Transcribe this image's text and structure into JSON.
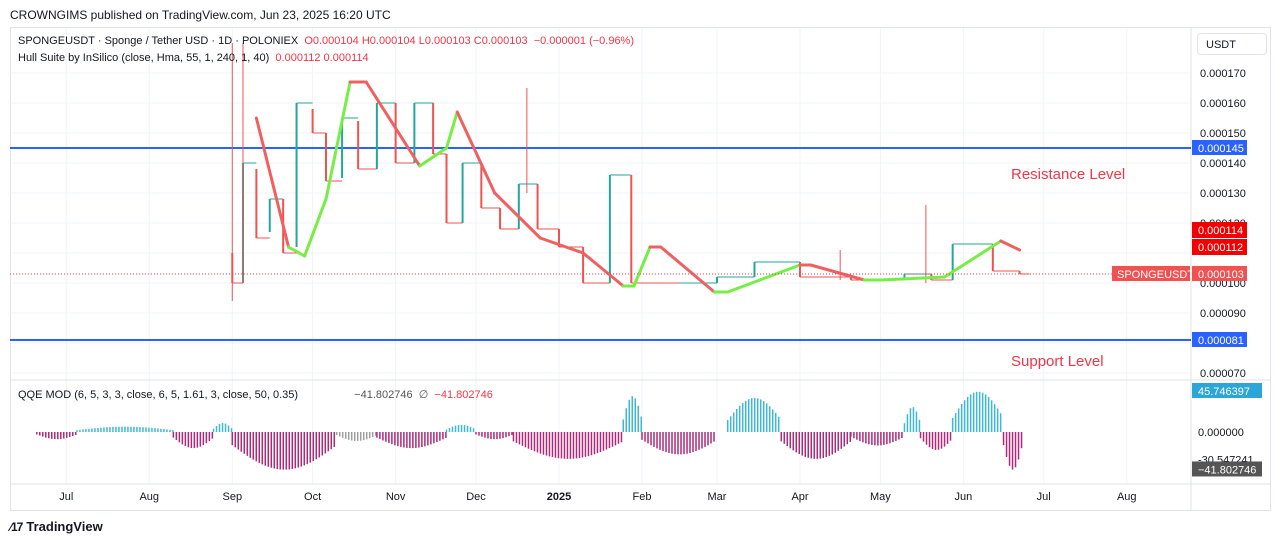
{
  "publisher": "CROWNGIMS published on TradingView.com, Jun 23, 2025 16:20 UTC",
  "legend": {
    "symbol_line": "SPONGEUSDT · Sponge / Tether USD · 1D · POLONIEX",
    "ohlc": "O0.000104 H0.000104 L0.000103 C0.000103",
    "change": "−0.000001 (−0.96%)",
    "hull_label": "Hull Suite by InSilico (close, Hma, 55, 1, 240, 1, 40)",
    "hull_values": "0.000112  0.000114",
    "qqe_label": "QQE MOD (6, 5, 3, 3, close, 6, 5, 1.61, 3, close, 50, 0.35)",
    "qqe_value": "−41.802746",
    "qqe_sep": "∅",
    "qqe_value2": "−41.802746"
  },
  "currency": "USDT",
  "annotations": {
    "resistance": "Resistance Level",
    "support": "Support Level"
  },
  "brand": "TradingView",
  "colors": {
    "up": "#26a69a",
    "down": "#ef5350",
    "hull_up": "#76ee46",
    "hull_down": "#f06060",
    "level": "#2962ff",
    "qqe_up": "#3fb8d4",
    "qqe_down": "#b0287a",
    "qqe_grey": "#9e9e9e"
  },
  "chart_data": {
    "type": "line",
    "title": "SPONGEUSDT · Sponge / Tether USD · 1D · POLONIEX",
    "x_ticks": [
      "Jul",
      "Aug",
      "Sep",
      "Oct",
      "Nov",
      "Dec",
      "2025",
      "Feb",
      "Mar",
      "Apr",
      "May",
      "Jun",
      "Jul",
      "Aug"
    ],
    "y_ticks": [
      "0.000170",
      "0.000160",
      "0.000150",
      "0.000140",
      "0.000130",
      "0.000120",
      "0.000100",
      "0.000090",
      "0.000070"
    ],
    "ylim": [
      6.6e-05,
      0.00018
    ],
    "levels": [
      {
        "name": "Resistance Level",
        "value": 0.000145,
        "label": "0.000145"
      },
      {
        "name": "Support Level",
        "value": 8.1e-05,
        "label": "0.000081"
      }
    ],
    "last_price": {
      "label": "SPONGEUSDT",
      "value": "0.000103",
      "y": 0.000103
    },
    "hull_price_labels": [
      {
        "value": "0.000114",
        "y": 0.000114
      },
      {
        "value": "0.000112",
        "y": 0.000112
      }
    ],
    "price_points": [
      {
        "x": "2024-09-01",
        "o": 0.00011,
        "c": 0.0001
      },
      {
        "x": "2024-09-05",
        "o": 0.0001,
        "c": 0.00014
      },
      {
        "x": "2024-09-10",
        "o": 0.000138,
        "c": 0.000115
      },
      {
        "x": "2024-09-15",
        "o": 0.000117,
        "c": 0.000128
      },
      {
        "x": "2024-09-20",
        "o": 0.000128,
        "c": 0.00011
      },
      {
        "x": "2024-09-25",
        "o": 0.000112,
        "c": 0.00016
      },
      {
        "x": "2024-10-01",
        "o": 0.000158,
        "c": 0.00015
      },
      {
        "x": "2024-10-06",
        "o": 0.00015,
        "c": 0.000134
      },
      {
        "x": "2024-10-12",
        "o": 0.000135,
        "c": 0.000155
      },
      {
        "x": "2024-10-18",
        "o": 0.000154,
        "c": 0.000138
      },
      {
        "x": "2024-10-25",
        "o": 0.000138,
        "c": 0.00016
      },
      {
        "x": "2024-11-01",
        "o": 0.00016,
        "c": 0.00014
      },
      {
        "x": "2024-11-08",
        "o": 0.00014,
        "c": 0.00016
      },
      {
        "x": "2024-11-15",
        "o": 0.00016,
        "c": 0.000143
      },
      {
        "x": "2024-11-20",
        "o": 0.000143,
        "c": 0.00012
      },
      {
        "x": "2024-11-26",
        "o": 0.00012,
        "c": 0.00014
      },
      {
        "x": "2024-12-03",
        "o": 0.00014,
        "c": 0.000125
      },
      {
        "x": "2024-12-10",
        "o": 0.000125,
        "c": 0.000118
      },
      {
        "x": "2024-12-17",
        "o": 0.000118,
        "c": 0.000133
      },
      {
        "x": "2024-12-24",
        "o": 0.000133,
        "c": 0.000118
      },
      {
        "x": "2025-01-01",
        "o": 0.000118,
        "c": 0.000112
      },
      {
        "x": "2025-01-10",
        "o": 0.000112,
        "c": 0.0001
      },
      {
        "x": "2025-01-20",
        "o": 0.0001,
        "c": 0.000136
      },
      {
        "x": "2025-01-28",
        "o": 0.000136,
        "c": 0.0001
      },
      {
        "x": "2025-02-15",
        "o": 0.0001,
        "c": 0.0001
      },
      {
        "x": "2025-03-01",
        "o": 0.0001,
        "c": 0.000102
      },
      {
        "x": "2025-03-15",
        "o": 0.000102,
        "c": 0.000107
      },
      {
        "x": "2025-04-01",
        "o": 0.000107,
        "c": 0.000102
      },
      {
        "x": "2025-04-20",
        "o": 0.000102,
        "c": 0.000101
      },
      {
        "x": "2025-05-10",
        "o": 0.000101,
        "c": 0.000103
      },
      {
        "x": "2025-05-20",
        "o": 0.000103,
        "c": 0.000101
      },
      {
        "x": "2025-05-28",
        "o": 0.000101,
        "c": 0.000113
      },
      {
        "x": "2025-06-12",
        "o": 0.000113,
        "c": 0.000104
      },
      {
        "x": "2025-06-22",
        "o": 0.000104,
        "c": 0.000103
      }
    ],
    "hull_series": [
      {
        "x": "2024-09-10",
        "y": 0.000155,
        "trend": "down"
      },
      {
        "x": "2024-09-22",
        "y": 0.000112,
        "trend": "down"
      },
      {
        "x": "2024-09-28",
        "y": 0.000109,
        "trend": "up"
      },
      {
        "x": "2024-10-06",
        "y": 0.000128,
        "trend": "up"
      },
      {
        "x": "2024-10-15",
        "y": 0.000167,
        "trend": "up"
      },
      {
        "x": "2024-10-21",
        "y": 0.000167,
        "trend": "down"
      },
      {
        "x": "2024-11-10",
        "y": 0.000139,
        "trend": "down"
      },
      {
        "x": "2024-11-20",
        "y": 0.000145,
        "trend": "up"
      },
      {
        "x": "2024-11-24",
        "y": 0.000157,
        "trend": "up"
      },
      {
        "x": "2024-12-08",
        "y": 0.00013,
        "trend": "down"
      },
      {
        "x": "2024-12-25",
        "y": 0.000115,
        "trend": "down"
      },
      {
        "x": "2025-01-10",
        "y": 0.00011,
        "trend": "down"
      },
      {
        "x": "2025-01-25",
        "y": 9.9e-05,
        "trend": "down"
      },
      {
        "x": "2025-01-29",
        "y": 9.9e-05,
        "trend": "up"
      },
      {
        "x": "2025-02-04",
        "y": 0.000112,
        "trend": "up"
      },
      {
        "x": "2025-02-08",
        "y": 0.000112,
        "trend": "down"
      },
      {
        "x": "2025-02-28",
        "y": 9.7e-05,
        "trend": "down"
      },
      {
        "x": "2025-03-05",
        "y": 9.7e-05,
        "trend": "up"
      },
      {
        "x": "2025-04-01",
        "y": 0.000106,
        "trend": "up"
      },
      {
        "x": "2025-04-05",
        "y": 0.000106,
        "trend": "down"
      },
      {
        "x": "2025-04-25",
        "y": 0.000101,
        "trend": "down"
      },
      {
        "x": "2025-05-01",
        "y": 0.000101,
        "trend": "up"
      },
      {
        "x": "2025-05-25",
        "y": 0.000102,
        "trend": "up"
      },
      {
        "x": "2025-06-15",
        "y": 0.000114,
        "trend": "up"
      },
      {
        "x": "2025-06-22",
        "y": 0.000111,
        "trend": "down"
      }
    ],
    "qqe": {
      "y_ticks": [
        "45.746397",
        "0.000000",
        "-30.547241",
        "-41.802746"
      ],
      "ylim": [
        -60,
        60
      ],
      "bands": [
        {
          "from": "2024-06-20",
          "to": "2024-07-05",
          "level": -8,
          "color": "down"
        },
        {
          "from": "2024-07-05",
          "to": "2024-08-10",
          "level": 6,
          "color": "up"
        },
        {
          "from": "2024-08-10",
          "to": "2024-08-25",
          "level": -18,
          "color": "down"
        },
        {
          "from": "2024-08-25",
          "to": "2024-09-01",
          "level": 10,
          "color": "up"
        },
        {
          "from": "2024-09-01",
          "to": "2024-10-10",
          "level": -42,
          "color": "down"
        },
        {
          "from": "2024-10-10",
          "to": "2024-10-25",
          "level": -10,
          "color": "grey"
        },
        {
          "from": "2024-10-25",
          "to": "2024-11-20",
          "level": -18,
          "color": "down"
        },
        {
          "from": "2024-11-20",
          "to": "2024-12-01",
          "level": 8,
          "color": "up"
        },
        {
          "from": "2024-12-01",
          "to": "2024-12-15",
          "level": -8,
          "color": "down"
        },
        {
          "from": "2024-12-15",
          "to": "2025-01-25",
          "level": -30,
          "color": "down"
        },
        {
          "from": "2025-01-25",
          "to": "2025-02-01",
          "level": 40,
          "color": "up"
        },
        {
          "from": "2025-02-01",
          "to": "2025-03-01",
          "level": -25,
          "color": "down"
        },
        {
          "from": "2025-03-05",
          "to": "2025-03-25",
          "level": 38,
          "color": "up"
        },
        {
          "from": "2025-03-25",
          "to": "2025-04-20",
          "level": -30,
          "color": "down"
        },
        {
          "from": "2025-04-20",
          "to": "2025-05-10",
          "level": -15,
          "color": "down"
        },
        {
          "from": "2025-05-10",
          "to": "2025-05-16",
          "level": 28,
          "color": "up"
        },
        {
          "from": "2025-05-16",
          "to": "2025-05-28",
          "level": -20,
          "color": "down"
        },
        {
          "from": "2025-05-28",
          "to": "2025-06-16",
          "level": 45,
          "color": "up"
        },
        {
          "from": "2025-06-16",
          "to": "2025-06-23",
          "level": -42,
          "color": "down"
        }
      ]
    }
  }
}
